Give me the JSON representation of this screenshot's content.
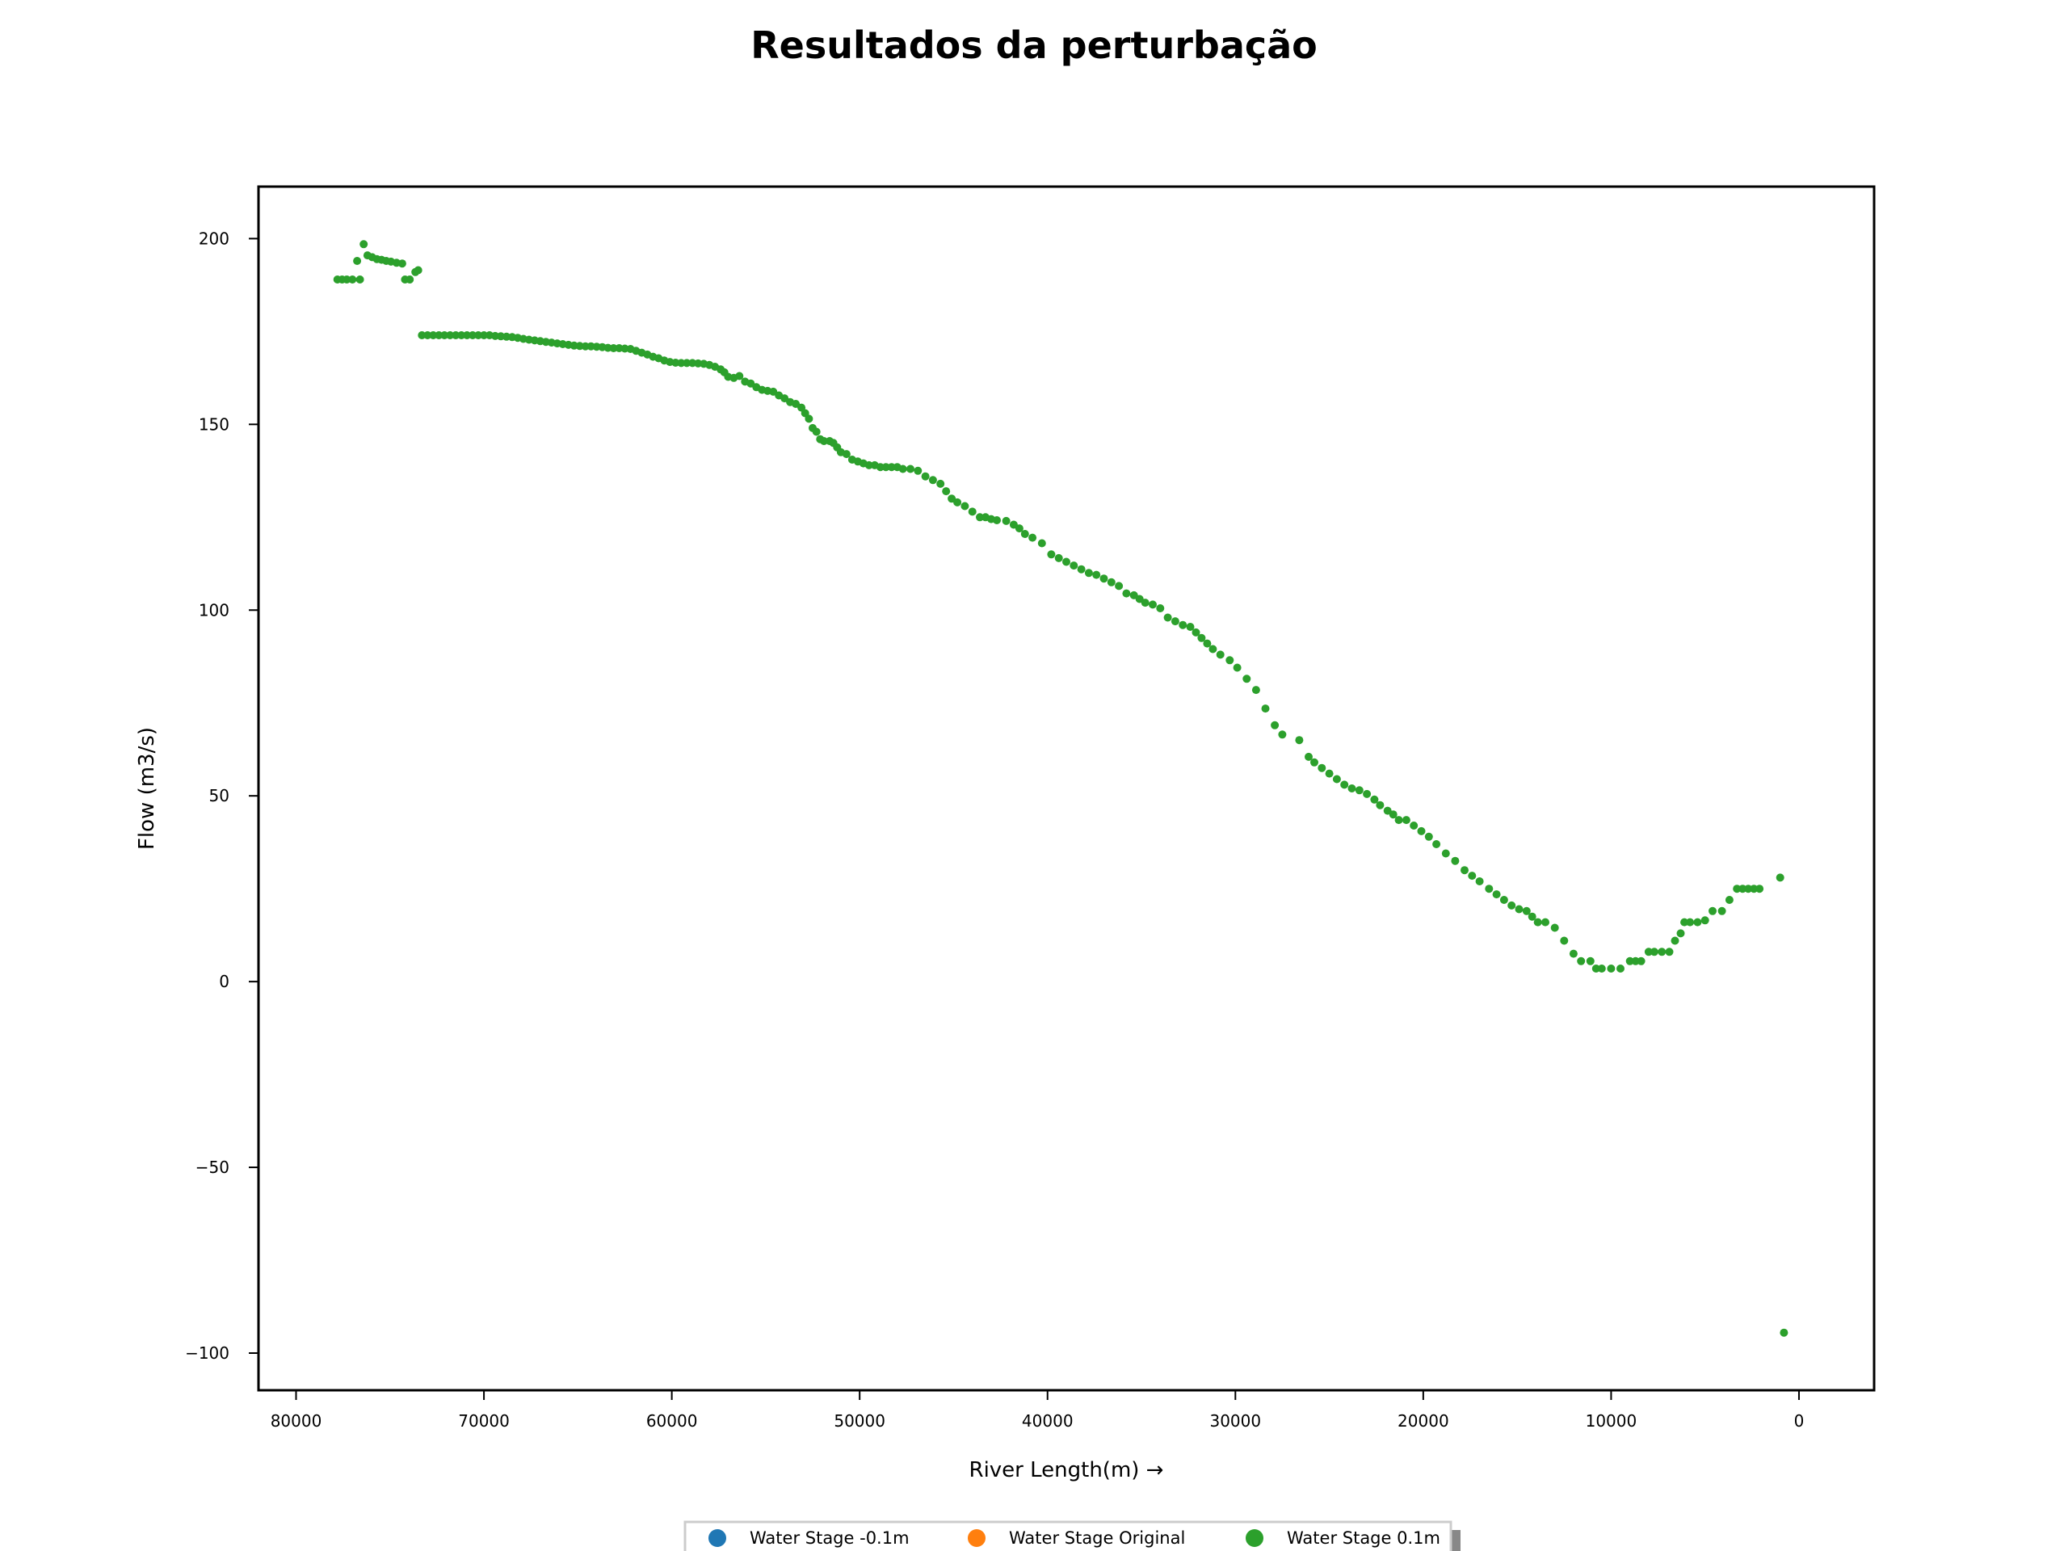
{
  "chart_data": {
    "type": "scatter",
    "title": "Resultados da perturbação",
    "xlabel": "River Length(m) →",
    "ylabel": "Flow (m3/s)",
    "xlim": [
      -4000,
      82000
    ],
    "ylim": [
      -110,
      214
    ],
    "x_inverted": true,
    "x_ticks": [
      80000,
      70000,
      60000,
      50000,
      40000,
      30000,
      20000,
      10000,
      0
    ],
    "x_tick_labels": [
      "80000",
      "70000",
      "60000",
      "50000",
      "40000",
      "30000",
      "20000",
      "10000",
      "0"
    ],
    "y_ticks": [
      200,
      150,
      100,
      50,
      0,
      -50,
      -100
    ],
    "y_tick_labels": [
      "200",
      "150",
      "100",
      "50",
      "0",
      "−50",
      "−100"
    ],
    "grid": false,
    "legend_position": "bottom-center",
    "series": [
      {
        "name": "Water Stage -0.1m",
        "color": "#1f77b4",
        "points": []
      },
      {
        "name": "Water Stage Original",
        "color": "#ff7f0e",
        "points": []
      },
      {
        "name": "Water Stage 0.1m",
        "color": "#2ca02c",
        "points": [
          [
            77800,
            189
          ],
          [
            77550,
            189
          ],
          [
            77300,
            189
          ],
          [
            77000,
            189
          ],
          [
            76750,
            194
          ],
          [
            76600,
            189
          ],
          [
            76400,
            198.5
          ],
          [
            76200,
            195.5
          ],
          [
            75950,
            195
          ],
          [
            75700,
            194.5
          ],
          [
            75450,
            194.3
          ],
          [
            75200,
            194
          ],
          [
            74950,
            193.8
          ],
          [
            74650,
            193.5
          ],
          [
            74350,
            193.3
          ],
          [
            74200,
            189
          ],
          [
            73950,
            189
          ],
          [
            73650,
            191
          ],
          [
            73500,
            191.5
          ],
          [
            73300,
            174
          ],
          [
            73000,
            174
          ],
          [
            72700,
            174
          ],
          [
            72400,
            174
          ],
          [
            72100,
            174
          ],
          [
            71800,
            174
          ],
          [
            71500,
            174
          ],
          [
            71200,
            174
          ],
          [
            70900,
            174
          ],
          [
            70600,
            174
          ],
          [
            70300,
            174
          ],
          [
            70000,
            174
          ],
          [
            69700,
            174
          ],
          [
            69400,
            173.8
          ],
          [
            69100,
            173.7
          ],
          [
            68800,
            173.6
          ],
          [
            68500,
            173.5
          ],
          [
            68200,
            173.3
          ],
          [
            67900,
            173
          ],
          [
            67600,
            172.8
          ],
          [
            67300,
            172.6
          ],
          [
            67000,
            172.4
          ],
          [
            66700,
            172.2
          ],
          [
            66400,
            172
          ],
          [
            66100,
            171.8
          ],
          [
            65800,
            171.6
          ],
          [
            65500,
            171.4
          ],
          [
            65200,
            171.2
          ],
          [
            64900,
            171.1
          ],
          [
            64600,
            171
          ],
          [
            64300,
            171
          ],
          [
            64000,
            170.9
          ],
          [
            63700,
            170.8
          ],
          [
            63400,
            170.6
          ],
          [
            63100,
            170.5
          ],
          [
            62800,
            170.5
          ],
          [
            62500,
            170.4
          ],
          [
            62200,
            170.3
          ],
          [
            61900,
            169.8
          ],
          [
            61600,
            169.3
          ],
          [
            61300,
            168.8
          ],
          [
            61000,
            168.2
          ],
          [
            60700,
            167.8
          ],
          [
            60400,
            167.2
          ],
          [
            60100,
            166.8
          ],
          [
            59800,
            166.6
          ],
          [
            59500,
            166.5
          ],
          [
            59200,
            166.5
          ],
          [
            58900,
            166.5
          ],
          [
            58600,
            166.4
          ],
          [
            58300,
            166.3
          ],
          [
            58000,
            166
          ],
          [
            57700,
            165.5
          ],
          [
            57400,
            164.8
          ],
          [
            57200,
            164
          ],
          [
            57000,
            162.8
          ],
          [
            56700,
            162.5
          ],
          [
            56400,
            163
          ],
          [
            56100,
            161.5
          ],
          [
            55800,
            161
          ],
          [
            55500,
            160
          ],
          [
            55200,
            159.3
          ],
          [
            54900,
            159
          ],
          [
            54600,
            158.8
          ],
          [
            54300,
            157.8
          ],
          [
            54000,
            157
          ],
          [
            53700,
            156
          ],
          [
            53400,
            155.5
          ],
          [
            53100,
            154.5
          ],
          [
            52900,
            153
          ],
          [
            52700,
            151.5
          ],
          [
            52500,
            149
          ],
          [
            52300,
            148
          ],
          [
            52100,
            146
          ],
          [
            51900,
            145.5
          ],
          [
            51600,
            145.5
          ],
          [
            51400,
            145
          ],
          [
            51200,
            143.8
          ],
          [
            51000,
            142.5
          ],
          [
            50700,
            142
          ],
          [
            50400,
            140.5
          ],
          [
            50100,
            140
          ],
          [
            49800,
            139.5
          ],
          [
            49500,
            139
          ],
          [
            49200,
            139
          ],
          [
            48900,
            138.5
          ],
          [
            48600,
            138.5
          ],
          [
            48300,
            138.5
          ],
          [
            48000,
            138.5
          ],
          [
            47700,
            138
          ],
          [
            47300,
            138
          ],
          [
            46900,
            137.5
          ],
          [
            46500,
            136
          ],
          [
            46100,
            135
          ],
          [
            45700,
            134
          ],
          [
            45400,
            132
          ],
          [
            45100,
            130
          ],
          [
            44800,
            129
          ],
          [
            44400,
            128
          ],
          [
            44000,
            126.5
          ],
          [
            43600,
            125
          ],
          [
            43300,
            125
          ],
          [
            43000,
            124.5
          ],
          [
            42700,
            124.2
          ],
          [
            42200,
            124
          ],
          [
            41800,
            123
          ],
          [
            41500,
            122
          ],
          [
            41200,
            120.5
          ],
          [
            40800,
            119.5
          ],
          [
            40300,
            118
          ],
          [
            39800,
            115
          ],
          [
            39400,
            114
          ],
          [
            39000,
            113
          ],
          [
            38600,
            112
          ],
          [
            38200,
            111
          ],
          [
            37800,
            110
          ],
          [
            37400,
            109.5
          ],
          [
            37000,
            108.5
          ],
          [
            36600,
            107.5
          ],
          [
            36200,
            106.5
          ],
          [
            35800,
            104.5
          ],
          [
            35400,
            104
          ],
          [
            35100,
            103
          ],
          [
            34800,
            102
          ],
          [
            34400,
            101.5
          ],
          [
            34000,
            100.5
          ],
          [
            33600,
            98
          ],
          [
            33200,
            97
          ],
          [
            32800,
            96
          ],
          [
            32400,
            95.5
          ],
          [
            32100,
            94
          ],
          [
            31800,
            92.5
          ],
          [
            31500,
            91
          ],
          [
            31200,
            89.5
          ],
          [
            30800,
            88
          ],
          [
            30300,
            86.5
          ],
          [
            29900,
            84.5
          ],
          [
            29400,
            81.5
          ],
          [
            28900,
            78.5
          ],
          [
            28400,
            73.5
          ],
          [
            27900,
            69
          ],
          [
            27500,
            66.5
          ],
          [
            26600,
            65
          ],
          [
            26100,
            60.5
          ],
          [
            25800,
            59
          ],
          [
            25400,
            57.5
          ],
          [
            25000,
            56
          ],
          [
            24600,
            54.5
          ],
          [
            24200,
            53
          ],
          [
            23800,
            52
          ],
          [
            23400,
            51.5
          ],
          [
            23000,
            50.5
          ],
          [
            22600,
            49
          ],
          [
            22300,
            47.5
          ],
          [
            21900,
            46
          ],
          [
            21600,
            45
          ],
          [
            21300,
            43.5
          ],
          [
            20900,
            43.5
          ],
          [
            20500,
            42
          ],
          [
            20100,
            40.5
          ],
          [
            19700,
            39
          ],
          [
            19300,
            37
          ],
          [
            18800,
            34.5
          ],
          [
            18300,
            32.5
          ],
          [
            17800,
            30
          ],
          [
            17400,
            28.5
          ],
          [
            17000,
            27
          ],
          [
            16500,
            25
          ],
          [
            16100,
            23.5
          ],
          [
            15700,
            22
          ],
          [
            15300,
            20.5
          ],
          [
            14900,
            19.5
          ],
          [
            14500,
            19
          ],
          [
            14200,
            17.5
          ],
          [
            13900,
            16
          ],
          [
            13500,
            16
          ],
          [
            13000,
            14.5
          ],
          [
            12500,
            11
          ],
          [
            12000,
            7.5
          ],
          [
            11600,
            5.5
          ],
          [
            11100,
            5.5
          ],
          [
            10800,
            3.5
          ],
          [
            10500,
            3.5
          ],
          [
            10000,
            3.5
          ],
          [
            9500,
            3.5
          ],
          [
            9000,
            5.5
          ],
          [
            8700,
            5.5
          ],
          [
            8400,
            5.5
          ],
          [
            8000,
            8
          ],
          [
            7700,
            8
          ],
          [
            7300,
            8
          ],
          [
            6900,
            8
          ],
          [
            6600,
            11
          ],
          [
            6300,
            13
          ],
          [
            6100,
            16
          ],
          [
            5800,
            16
          ],
          [
            5400,
            16
          ],
          [
            5000,
            16.5
          ],
          [
            4600,
            19
          ],
          [
            4100,
            19
          ],
          [
            3700,
            22
          ],
          [
            3300,
            25
          ],
          [
            3000,
            25
          ],
          [
            2700,
            25
          ],
          [
            2400,
            25
          ],
          [
            2100,
            25
          ],
          [
            1000,
            28
          ],
          [
            800,
            -94.5
          ]
        ]
      }
    ]
  }
}
